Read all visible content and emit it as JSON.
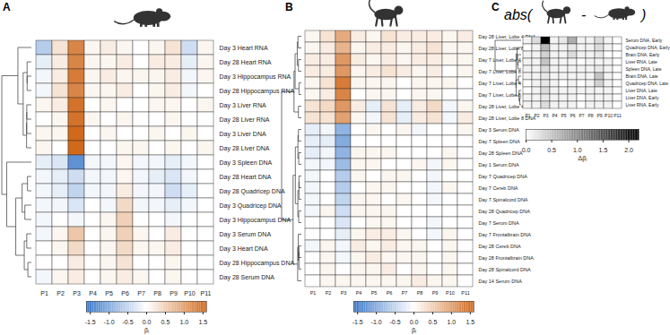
{
  "chart_data": [
    {
      "type": "heatmap",
      "panel": "A",
      "columns": [
        "P1",
        "P2",
        "P3",
        "P4",
        "P5",
        "P6",
        "P7",
        "P8",
        "P9",
        "P10",
        "P11"
      ],
      "rows": [
        "Day 3 Heart RNA",
        "Day 28 Heart RNA",
        "Day 3 Hippocampus RNA",
        "Day 28 Hippocampus RNA",
        "Day 3 Liver RNA",
        "Day 28 Liver RNA",
        "Day 3 Liver DNA",
        "Day 28 Liver DNA",
        "Day 3 Spleen DNA",
        "Day 28 Heart DNA",
        "Day 28 Quadricep DNA",
        "Day 3 Quadricep DNA",
        "Day 3 Hippocampus DNA",
        "Day 3 Serum DNA",
        "Day 3 Heart DNA",
        "Day 28 Hippocampus DNA",
        "Day 28 Serum DNA"
      ],
      "cells": [
        [
          -0.6,
          0.3,
          1.3,
          0.1,
          0.2,
          0.1,
          0.0,
          0.1,
          0.3,
          -0.4,
          0.1
        ],
        [
          -0.2,
          0.2,
          1.3,
          0.1,
          0.1,
          0.2,
          0.0,
          0.2,
          0.2,
          -0.2,
          0.1
        ],
        [
          -0.1,
          0.2,
          1.4,
          0.1,
          0.2,
          0.1,
          0.1,
          0.1,
          0.2,
          -0.1,
          0.1
        ],
        [
          -0.1,
          0.3,
          1.3,
          0.1,
          0.1,
          0.2,
          0.0,
          0.1,
          0.2,
          -0.1,
          0.0
        ],
        [
          0.1,
          0.2,
          1.5,
          0.0,
          0.1,
          0.0,
          0.0,
          0.1,
          0.1,
          0.0,
          0.1
        ],
        [
          0.0,
          0.1,
          1.5,
          0.1,
          0.0,
          0.1,
          0.0,
          0.0,
          0.1,
          0.0,
          0.0
        ],
        [
          0.1,
          0.1,
          1.6,
          0.0,
          0.1,
          0.0,
          0.0,
          0.1,
          0.0,
          0.1,
          0.0
        ],
        [
          0.1,
          0.0,
          1.6,
          0.0,
          0.0,
          0.1,
          0.1,
          0.0,
          0.1,
          0.0,
          0.1
        ],
        [
          -0.2,
          -0.3,
          -1.3,
          -0.1,
          -0.1,
          0.1,
          -0.1,
          -0.1,
          -0.2,
          -0.1,
          0.0
        ],
        [
          -0.1,
          -0.2,
          -0.4,
          -0.1,
          -0.1,
          0.1,
          -0.1,
          -0.2,
          -0.3,
          -0.1,
          0.0
        ],
        [
          -0.1,
          -0.2,
          -0.5,
          -0.1,
          -0.1,
          0.2,
          -0.1,
          -0.1,
          -0.4,
          -0.2,
          0.0
        ],
        [
          -0.1,
          -0.1,
          -0.3,
          0.0,
          -0.1,
          0.4,
          -0.1,
          -0.1,
          -0.2,
          -0.1,
          0.0
        ],
        [
          -0.1,
          0.0,
          -0.1,
          0.0,
          0.1,
          0.5,
          0.0,
          0.0,
          -0.1,
          0.0,
          0.0
        ],
        [
          -0.1,
          0.1,
          0.6,
          0.0,
          0.1,
          0.5,
          0.1,
          0.0,
          0.2,
          0.0,
          0.0
        ],
        [
          0.0,
          0.1,
          0.4,
          0.0,
          0.1,
          0.4,
          0.1,
          0.1,
          0.2,
          0.0,
          0.0
        ],
        [
          0.0,
          0.0,
          0.2,
          0.0,
          0.1,
          0.3,
          0.0,
          0.0,
          0.1,
          0.0,
          0.0
        ],
        [
          -0.1,
          0.1,
          0.2,
          0.0,
          0.1,
          0.2,
          0.1,
          0.0,
          0.1,
          0.0,
          0.0
        ]
      ],
      "color_range": [
        -1.6,
        1.6
      ],
      "color_ticks": [
        -1.5,
        {
          "value": -1,
          "label": "-1.0"
        },
        -0.5,
        {
          "value": 0,
          "label": "0.0"
        },
        0.5,
        {
          "value": 1,
          "label": "1.0"
        },
        1.5
      ],
      "color_label": "βⱼ",
      "colors": [
        "#3a78c9",
        "#ffffff",
        "#d0691c"
      ]
    },
    {
      "type": "heatmap",
      "panel": "B",
      "columns": [
        "P1",
        "P2",
        "P3",
        "P4",
        "P5",
        "P6",
        "P7",
        "P8",
        "P9",
        "P10",
        "P11"
      ],
      "rows": [
        "Day 28 Liver, Lobe 4 RNA",
        "Day 28 Liver, Lobe 8 RNA",
        "Day 7 Liver, Lobe 4 RNA",
        "Day 7 Liver, Lobe 8 RNA",
        "Day 7 Liver, Lobe 4 DNA",
        "Day 7 Liver, Lobe 8 DNA",
        "Day 28 Liver, Lobe 4 DNA",
        "Day 28 Liver, Lobe 8 DNA",
        "Day 3 Serum DNA",
        "Day 7 Spleen DNA",
        "Day 28 Spleen DNA",
        "Day 1 Serum DNA",
        "Day 7 Quadricep DNA",
        "Day 7 Cereb DNA",
        "Day 7 Spinalcord DNA",
        "Day 28 Quadricep DNA",
        "Day 7 Serum DNA",
        "Day 7 Frontalbrain DNA",
        "Day 28 Cereb DNA",
        "Day 28 Frontalbrain DNA",
        "Day 28 Spinalcord DNA",
        "Day 14 Serum DNA"
      ],
      "cells": [
        [
          0.1,
          0.3,
          0.9,
          0.2,
          0.1,
          0.3,
          0.2,
          0.2,
          0.2,
          0.1,
          0.2
        ],
        [
          0.1,
          0.2,
          0.8,
          0.1,
          0.2,
          0.2,
          0.1,
          0.2,
          0.3,
          0.1,
          0.1
        ],
        [
          0.2,
          0.2,
          1.1,
          0.2,
          0.1,
          0.2,
          0.1,
          0.2,
          0.2,
          0.1,
          0.1
        ],
        [
          0.2,
          0.2,
          1.1,
          0.1,
          0.2,
          0.3,
          0.2,
          0.1,
          0.2,
          0.0,
          0.1
        ],
        [
          0.1,
          0.3,
          1.4,
          0.1,
          0.1,
          0.1,
          0.0,
          0.1,
          0.1,
          0.1,
          0.0
        ],
        [
          0.1,
          0.2,
          1.3,
          0.0,
          0.1,
          0.1,
          0.0,
          0.1,
          0.1,
          0.0,
          0.0
        ],
        [
          0.3,
          0.4,
          1.1,
          0.2,
          -0.2,
          0.3,
          -0.2,
          0.2,
          0.4,
          -0.1,
          0.1
        ],
        [
          0.3,
          0.3,
          1.0,
          0.1,
          -0.1,
          0.3,
          -0.2,
          0.2,
          0.3,
          -0.1,
          0.2
        ],
        [
          -0.2,
          -0.1,
          -0.9,
          0.0,
          0.1,
          0.0,
          0.1,
          -0.1,
          0.0,
          0.0,
          0.1
        ],
        [
          -0.2,
          -0.2,
          -1.0,
          0.0,
          0.0,
          0.0,
          0.0,
          0.0,
          0.0,
          0.0,
          0.0
        ],
        [
          -0.2,
          -0.1,
          -0.9,
          0.1,
          0.1,
          0.1,
          0.0,
          0.0,
          0.0,
          0.1,
          0.0
        ],
        [
          -0.1,
          -0.1,
          -0.8,
          0.1,
          0.1,
          0.0,
          0.0,
          0.1,
          -0.1,
          0.1,
          0.0
        ],
        [
          -0.1,
          0.0,
          -0.6,
          0.1,
          0.0,
          0.1,
          0.1,
          0.0,
          -0.1,
          0.0,
          0.0
        ],
        [
          -0.1,
          0.0,
          -0.6,
          0.0,
          0.1,
          0.1,
          0.0,
          0.0,
          -0.1,
          0.1,
          0.0
        ],
        [
          -0.1,
          0.0,
          -0.5,
          0.1,
          0.1,
          0.0,
          0.1,
          0.0,
          -0.1,
          0.0,
          0.0
        ],
        [
          -0.1,
          0.1,
          -0.4,
          0.1,
          0.1,
          0.1,
          0.0,
          0.0,
          0.0,
          0.0,
          0.0
        ],
        [
          0.0,
          0.0,
          -0.3,
          0.0,
          0.1,
          0.1,
          0.0,
          0.0,
          -0.1,
          0.0,
          0.0
        ],
        [
          0.0,
          0.0,
          -0.2,
          0.1,
          0.2,
          0.2,
          0.1,
          0.0,
          -0.1,
          0.1,
          0.0
        ],
        [
          -0.1,
          0.1,
          -0.1,
          0.2,
          0.1,
          0.2,
          0.1,
          0.1,
          0.0,
          0.1,
          0.0
        ],
        [
          0.0,
          0.1,
          -0.1,
          0.1,
          0.2,
          0.1,
          0.1,
          0.1,
          0.0,
          0.1,
          0.0
        ],
        [
          0.0,
          0.1,
          0.0,
          0.1,
          0.1,
          0.2,
          0.0,
          0.1,
          0.0,
          0.1,
          0.0
        ],
        [
          0.0,
          0.1,
          0.1,
          0.1,
          0.1,
          0.1,
          0.1,
          0.2,
          0.1,
          0.1,
          0.0
        ]
      ],
      "color_range": [
        -1.6,
        1.6
      ],
      "color_ticks": [
        -1.5,
        {
          "value": -1,
          "label": "-1.0"
        },
        -0.5,
        {
          "value": 0,
          "label": "0.0"
        },
        0.5,
        {
          "value": 1,
          "label": "1.0"
        },
        1.5
      ],
      "color_label": "βⱼ",
      "colors": [
        "#3a78c9",
        "#ffffff",
        "#d0691c"
      ]
    },
    {
      "type": "heatmap",
      "panel": "C",
      "title_prefix": "abs(",
      "title_operator": "-",
      "title_suffix": ")",
      "columns": [
        "P1",
        "P2",
        "P3",
        "P4",
        "P5",
        "P6",
        "P7",
        "P8",
        "P9",
        "P10",
        "P11"
      ],
      "rows": [
        "Serum DNA, Early",
        "Quadricep DNA, Early",
        "Brain DNA, Early",
        "Liver RNA, Late",
        "Spleen DNA, Late",
        "Brain DNA, Late",
        "Quadricep DNA, Late",
        "Liver DNA, Late",
        "Liver DNA, Early",
        "Liver RNA, Early"
      ],
      "cells": [
        [
          0.1,
          0.3,
          2.2,
          0.1,
          0.2,
          0.7,
          0.1,
          0.1,
          0.3,
          0.1,
          0.0
        ],
        [
          0.0,
          0.1,
          0.6,
          0.1,
          0.1,
          0.2,
          0.1,
          0.1,
          0.3,
          0.1,
          0.0
        ],
        [
          0.1,
          0.1,
          0.4,
          0.1,
          0.1,
          0.3,
          0.1,
          0.1,
          0.2,
          0.0,
          0.0
        ],
        [
          0.1,
          0.1,
          0.5,
          0.1,
          0.1,
          0.1,
          0.0,
          0.1,
          0.1,
          0.1,
          0.0
        ],
        [
          0.1,
          0.1,
          0.3,
          0.1,
          0.1,
          0.1,
          0.1,
          0.1,
          0.2,
          0.1,
          0.0
        ],
        [
          0.1,
          0.1,
          0.2,
          0.1,
          0.1,
          0.1,
          0.1,
          0.1,
          0.5,
          0.1,
          0.0
        ],
        [
          0.0,
          0.1,
          0.2,
          0.1,
          0.0,
          0.1,
          0.0,
          0.1,
          0.4,
          0.1,
          0.0
        ],
        [
          0.0,
          0.1,
          0.3,
          0.1,
          0.1,
          0.1,
          0.1,
          0.1,
          0.1,
          0.1,
          0.0
        ],
        [
          0.1,
          0.1,
          0.2,
          0.1,
          0.1,
          0.1,
          0.0,
          0.1,
          0.1,
          0.1,
          0.0
        ],
        [
          0.1,
          0.1,
          0.3,
          0.1,
          0.1,
          0.1,
          0.0,
          0.1,
          0.1,
          0.1,
          0.0
        ]
      ],
      "color_range": [
        0,
        2.2
      ],
      "color_ticks": [
        {
          "value": 0,
          "label": "0.0"
        },
        0.5,
        {
          "value": 1,
          "label": "1.0"
        },
        1.5,
        {
          "value": 2,
          "label": "2.0"
        }
      ],
      "color_label": "Δβⱼ",
      "colors": [
        "#ffffff",
        "#000000"
      ]
    }
  ]
}
